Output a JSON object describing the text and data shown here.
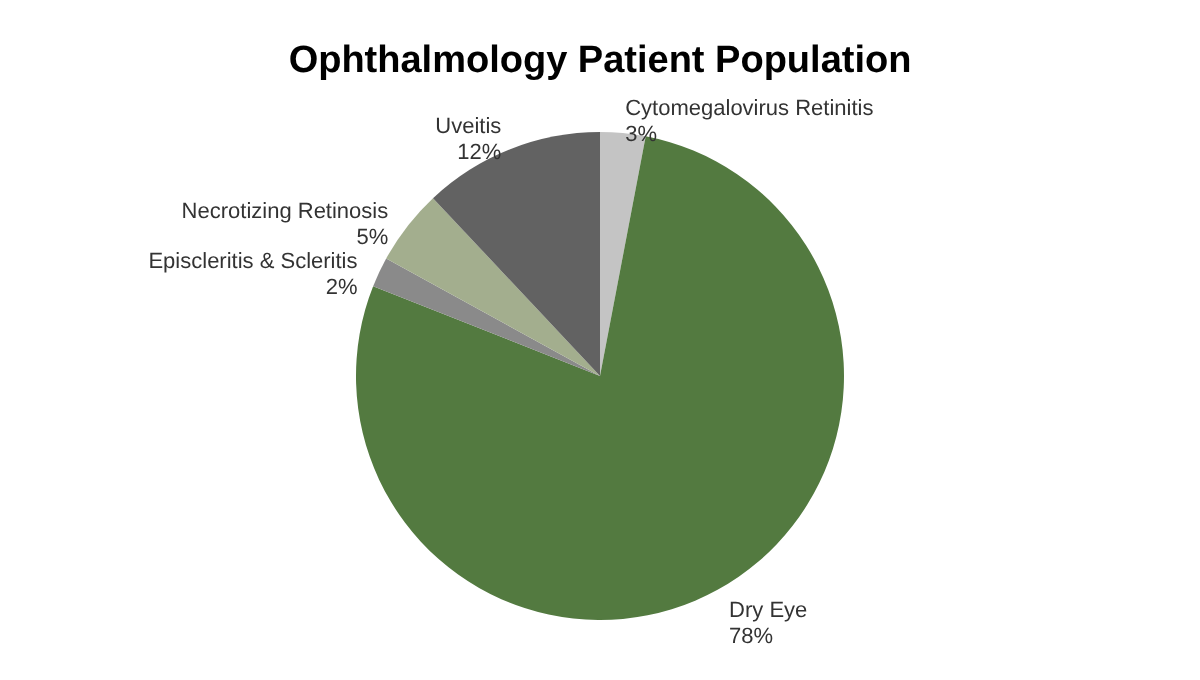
{
  "chart_data": {
    "type": "pie",
    "title": "Ophthalmology Patient Population",
    "categories": [
      "Cytomegalovirus Retinitis",
      "Dry Eye",
      "Episcleritis & Scleritis",
      "Necrotizing Retinosis",
      "Uveitis"
    ],
    "values": [
      3,
      78,
      2,
      5,
      12
    ],
    "value_labels": [
      "3%",
      "78%",
      "2%",
      "5%",
      "12%"
    ],
    "colors": [
      "#c4c4c4",
      "#537a40",
      "#8a8a8a",
      "#a3ae8e",
      "#626262"
    ],
    "legend": false
  }
}
